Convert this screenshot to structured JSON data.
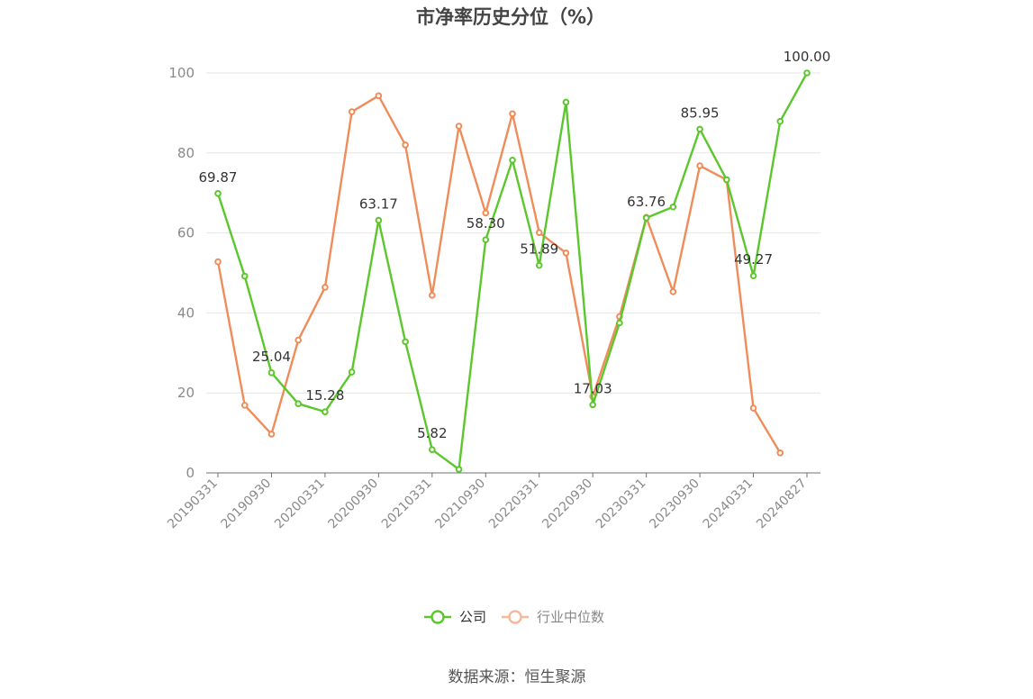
{
  "chart_data": {
    "type": "line",
    "title": "市净率历史分位（%）",
    "source": "数据来源：恒生聚源",
    "ylim": [
      0,
      100
    ],
    "yticks": [
      0,
      20,
      40,
      60,
      80,
      100
    ],
    "xtick_labels": [
      "20190331",
      "20190930",
      "20200331",
      "20200930",
      "20210331",
      "20210930",
      "20220331",
      "20220930",
      "20230331",
      "20230930",
      "20240331",
      "20240827"
    ],
    "x": [
      "20190331",
      "20190630",
      "20190930",
      "20191231",
      "20200331",
      "20200630",
      "20200930",
      "20201231",
      "20210331",
      "20210630",
      "20210930",
      "20211231",
      "20220331",
      "20220630",
      "20220930",
      "20221231",
      "20230331",
      "20230630",
      "20230930",
      "20231231",
      "20240331",
      "20240630",
      "20240827"
    ],
    "series": [
      {
        "name": "公司",
        "color": "#5cc72c",
        "values": [
          69.87,
          49.2,
          25.04,
          17.3,
          15.28,
          25.2,
          63.17,
          32.8,
          5.82,
          0.9,
          58.3,
          78.2,
          51.89,
          92.7,
          17.03,
          37.5,
          63.76,
          66.5,
          85.95,
          73.3,
          49.27,
          87.9,
          100.0
        ],
        "labels": [
          "69.87",
          "",
          "25.04",
          "",
          "15.28",
          "",
          "63.17",
          "",
          "5.82",
          "",
          "58.30",
          "",
          "51.89",
          "",
          "17.03",
          "",
          "63.76",
          "",
          "85.95",
          "",
          "49.27",
          "",
          "100.00"
        ]
      },
      {
        "name": "行业中位数",
        "color": "#f08c5a",
        "values": [
          52.8,
          16.9,
          9.7,
          33.2,
          46.4,
          90.3,
          94.3,
          82.0,
          44.4,
          86.7,
          65.0,
          89.8,
          60.1,
          55.0,
          19.1,
          39.1,
          63.9,
          45.3,
          76.8,
          73.3,
          16.2,
          5.0,
          null
        ],
        "labels": []
      }
    ],
    "legend": {
      "position": "bottom-center",
      "items": [
        {
          "name": "公司",
          "color": "#5cc72c",
          "text_color": "#333333"
        },
        {
          "name": "行业中位数",
          "color": "#f6b89a",
          "text_color": "#888888"
        }
      ]
    },
    "grid": true
  }
}
